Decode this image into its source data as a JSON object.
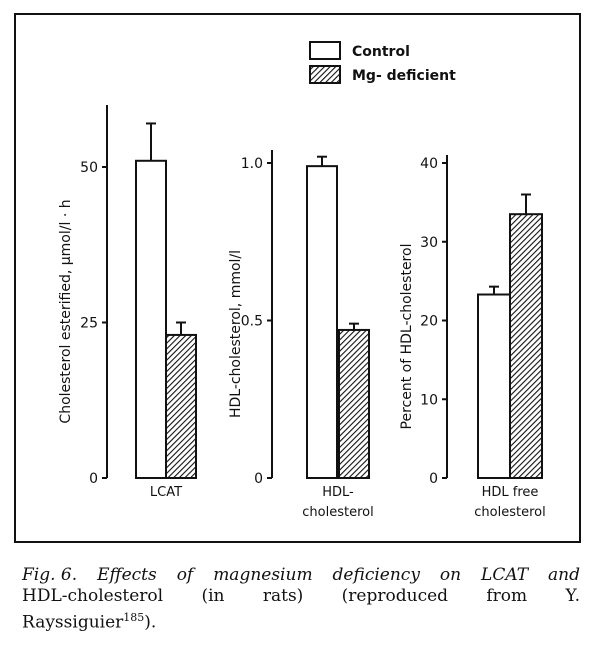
{
  "legend": {
    "control": "Control",
    "mg_deficient": "Mg- deficient"
  },
  "chart_data": [
    {
      "type": "bar",
      "categories": [
        "LCAT"
      ],
      "ylabel": "Cholesterol esterified, μmol/l · h",
      "ylim": [
        0,
        60
      ],
      "yticks": [
        "0",
        "25",
        "50"
      ],
      "series": [
        {
          "name": "Control",
          "values": [
            51
          ],
          "errors": [
            6
          ]
        },
        {
          "name": "Mg- deficient",
          "values": [
            23
          ],
          "errors": [
            2
          ]
        }
      ]
    },
    {
      "type": "bar",
      "categories": [
        "HDL- cholesterol"
      ],
      "category_lines": [
        "HDL-",
        "cholesterol"
      ],
      "ylabel": "HDL-cholesterol, mmol/l",
      "ylim": [
        0,
        1.1
      ],
      "yticks": [
        "0",
        "0.5",
        "1.0"
      ],
      "series": [
        {
          "name": "Control",
          "values": [
            0.99
          ],
          "errors": [
            0.03
          ]
        },
        {
          "name": "Mg- deficient",
          "values": [
            0.47
          ],
          "errors": [
            0.02
          ]
        }
      ]
    },
    {
      "type": "bar",
      "categories": [
        "HDL free cholesterol"
      ],
      "category_lines": [
        "HDL free",
        "cholesterol"
      ],
      "ylabel": "Percent of HDL-cholesterol",
      "ylim": [
        0,
        40
      ],
      "yticks": [
        "0",
        "10",
        "20",
        "30",
        "40"
      ],
      "series": [
        {
          "name": "Control",
          "values": [
            23.3
          ],
          "errors": [
            1
          ]
        },
        {
          "name": "Mg- deficient",
          "values": [
            33.5
          ],
          "errors": [
            2.5
          ]
        }
      ]
    }
  ],
  "caption": {
    "line1_words": [
      "Fig. 6.",
      "Effects",
      "of",
      "magnesium",
      "deficiency",
      "on",
      "LCAT",
      "and"
    ],
    "line2_words": [
      "HDL-cholesterol",
      "(in",
      "rats)",
      "(reproduced",
      "from",
      "Y."
    ],
    "line3": "Rayssiguier",
    "line3_ref": "185",
    "line3_end": ")."
  }
}
